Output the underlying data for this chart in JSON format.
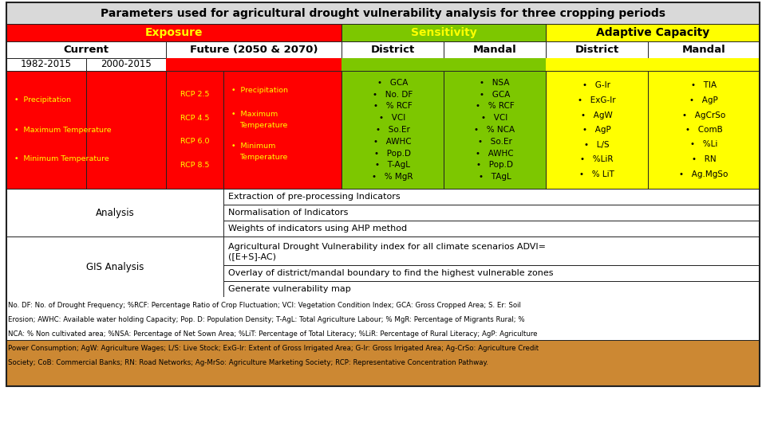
{
  "title": "Parameters used for agricultural drought vulnerability analysis for three cropping periods",
  "exposure_bg": "#ff0000",
  "exposure_text": "#ffff00",
  "sensitivity_bg": "#7dc700",
  "adaptive_bg": "#ffff00",
  "title_bg": "#d9d9d9",
  "white_bg": "#ffffff",
  "footnote_bg1": "#ffffff",
  "footnote_bg2": "#cc8833",
  "sens_d_items": [
    "GCA",
    "No. DF",
    "% RCF",
    "VCI",
    "So.Er",
    "AWHC",
    "Pop.D",
    "T-AgL",
    "% MgR"
  ],
  "sens_m_items": [
    "NSA",
    "GCA",
    "% RCF",
    "VCI",
    "% NCA",
    "So.Er",
    "AWHC",
    "Pop.D",
    "TAgL"
  ],
  "adap_d_items": [
    "G-Ir",
    "ExG-Ir",
    "AgW",
    "AgP",
    "L/S",
    "%LiR",
    "% LiT"
  ],
  "adap_m_items": [
    "TIA",
    "AgP",
    "AgCrSo",
    "ComB",
    "%Li",
    "RN",
    "Ag.MgSo"
  ],
  "rcps": [
    "RCP 2.5",
    "RCP 4.5",
    "RCP 6.0",
    "RCP 8.5"
  ],
  "current_items": [
    "Precipitation",
    "Maximum Temperature",
    "Minimum Temperature"
  ],
  "future_items": [
    "Precipitation",
    "Maximum\nTemperature",
    "Minimum\nTemperature"
  ],
  "fn_line1": "No. DF: No. of Drought Frequency; %RCF: Percentage Ratio of Crop Fluctuation; VCI: Vegetation Condition Index; GCA: Gross Cropped Area; S. Er: Soil",
  "fn_line2": "Erosion; AWHC: Available water holding Capacity; Pop. D: Population Density; T-AgL: Total Agriculture Labour; % MgR: Percentage of Migrants Rural; %",
  "fn_line3": "NCA: % Non cultivated area; %NSA: Percentage of Net Sown Area; %LiT: Percentage of Total Literacy; %LiR: Percentage of Rural Literacy; AgP: Agriculture",
  "fn_line4": "Power Consumption; AgW: Agriculture Wages; L/S: Live Stock; ExG-Ir: Extent of Gross Irrigated Area; G-Ir: Gross Irrigated Area; Ag-CrSo: Agriculture Credit",
  "fn_line5": "Society; CoB: Commercial Banks; RN: Road Networks; Ag-MrSo: Agriculture Marketing Society; RCP: Representative Concentration Pathway."
}
